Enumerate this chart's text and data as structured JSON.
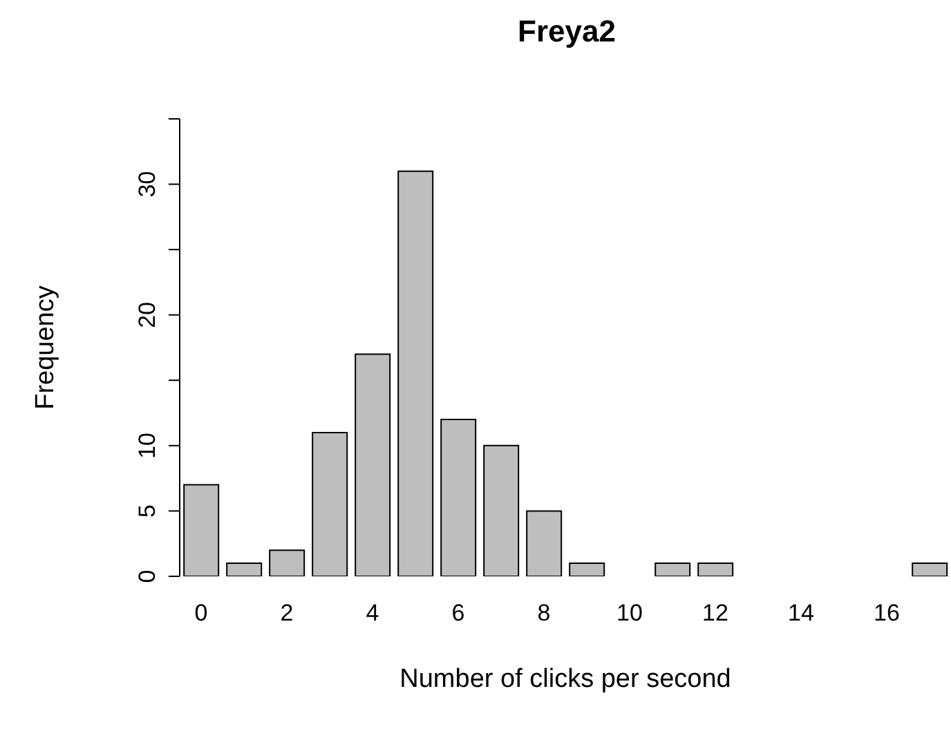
{
  "chart_data": {
    "type": "bar",
    "title": "Freya2",
    "xlabel": "Number of clicks per second",
    "ylabel": "Frequency",
    "categories": [
      "0",
      null,
      "2",
      null,
      "4",
      null,
      "6",
      null,
      "8",
      null,
      "10",
      null,
      "12",
      null,
      "14",
      null,
      "16",
      null
    ],
    "values": [
      7,
      1,
      2,
      11,
      17,
      31,
      12,
      10,
      5,
      1,
      0,
      1,
      1,
      0,
      0,
      0,
      0,
      1
    ],
    "color": "#bebebe",
    "ylim": [
      0,
      35
    ],
    "yticks": [
      0,
      5,
      10,
      {
        "value": 15,
        "label": null
      },
      20,
      {
        "value": 25,
        "label": null
      },
      30,
      {
        "value": 35,
        "label": null
      }
    ],
    "grid": false,
    "legend": false
  }
}
